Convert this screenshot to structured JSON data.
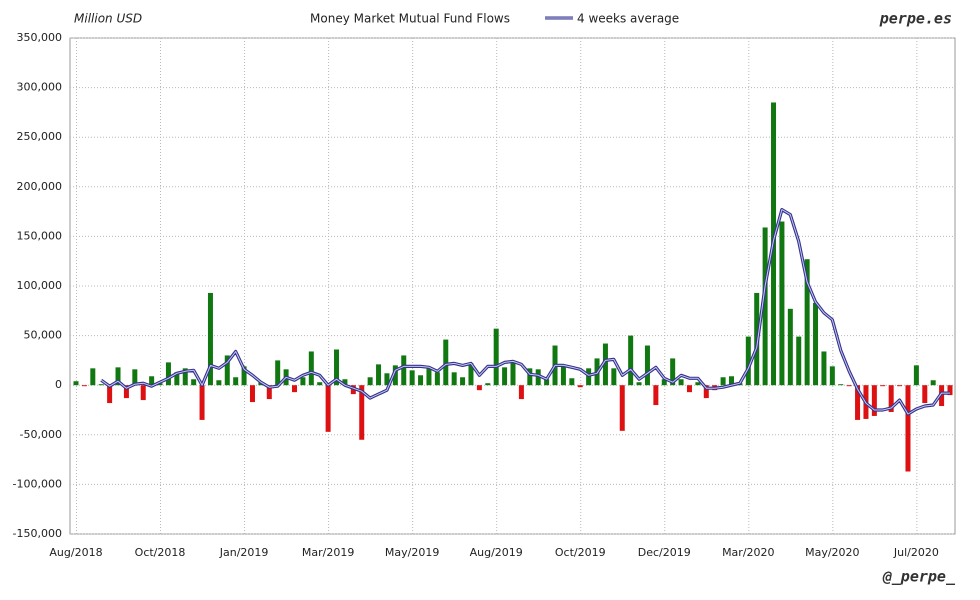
{
  "chart_data": {
    "type": "bar",
    "title": "Money Market Mutual Fund Flows",
    "y_axis_label": "Million USD",
    "site": "perpe.es",
    "handle": "@_perpe_",
    "positive_color": "#117711",
    "negative_color": "#dd1111",
    "grid": true,
    "categories": [
      "Aug/2018",
      null,
      null,
      null,
      null,
      null,
      null,
      null,
      null,
      null,
      "Oct/2018",
      null,
      null,
      null,
      null,
      null,
      null,
      null,
      null,
      null,
      "Jan/2019",
      null,
      null,
      null,
      null,
      null,
      null,
      null,
      null,
      null,
      "Mar/2019",
      null,
      null,
      null,
      null,
      null,
      null,
      null,
      null,
      null,
      "May/2019",
      null,
      null,
      null,
      null,
      null,
      null,
      null,
      null,
      null,
      "Aug/2019",
      null,
      null,
      null,
      null,
      null,
      null,
      null,
      null,
      null,
      "Oct/2019",
      null,
      null,
      null,
      null,
      null,
      null,
      null,
      null,
      null,
      "Dec/2019",
      null,
      null,
      null,
      null,
      null,
      null,
      null,
      null,
      null,
      "Mar/2020",
      null,
      null,
      null,
      null,
      null,
      null,
      null,
      null,
      null,
      "May/2020",
      null,
      null,
      null,
      null,
      null,
      null,
      null,
      null,
      null,
      "Jul/2020",
      null,
      null,
      null,
      null
    ],
    "values": [
      4000,
      -1000,
      17000,
      1000,
      -18000,
      18000,
      -13000,
      16000,
      -15000,
      9000,
      2000,
      23000,
      13000,
      17000,
      6000,
      -35000,
      93000,
      5000,
      30000,
      8000,
      19000,
      -17000,
      3000,
      -14000,
      25000,
      16000,
      -7000,
      8000,
      34000,
      3000,
      -47000,
      36000,
      6000,
      -9000,
      -55000,
      8000,
      21000,
      12000,
      20000,
      30000,
      15000,
      10000,
      17000,
      13000,
      46000,
      13000,
      8000,
      22000,
      -5000,
      2000,
      57000,
      18000,
      23000,
      -14000,
      17000,
      16000,
      6000,
      40000,
      19000,
      7000,
      -2000,
      17000,
      27000,
      42000,
      17000,
      -46000,
      50000,
      3000,
      40000,
      -20000,
      6000,
      27000,
      6000,
      -7000,
      3000,
      -13000,
      -5000,
      8000,
      9000,
      2000,
      49000,
      93000,
      159000,
      285000,
      165000,
      77000,
      49000,
      127000,
      83000,
      34000,
      19000,
      1000,
      -1000,
      -35000,
      -34000,
      -31000,
      -1000,
      -27000,
      -1000,
      -87000,
      20000,
      -18000,
      5000,
      -21000,
      -10000
    ],
    "series": [
      {
        "name": "4 weeks average",
        "color": "#33338f",
        "type": "line",
        "values": [
          null,
          null,
          null,
          5000,
          -1000,
          4000,
          -3000,
          1000,
          2000,
          -1000,
          3000,
          7000,
          12000,
          14000,
          15000,
          0,
          20000,
          17000,
          23000,
          34000,
          16000,
          10000,
          3000,
          -2000,
          -1000,
          8000,
          5000,
          10000,
          13000,
          10000,
          0,
          6000,
          0,
          -3000,
          -6000,
          -13000,
          -9000,
          -5000,
          15000,
          19000,
          19000,
          19000,
          18000,
          14000,
          21000,
          22000,
          20000,
          22000,
          10000,
          19000,
          19000,
          23000,
          24000,
          21000,
          11000,
          10000,
          6000,
          20000,
          20000,
          18000,
          16000,
          10000,
          12000,
          25000,
          26000,
          10000,
          16000,
          6000,
          12000,
          18000,
          7000,
          3000,
          10000,
          7000,
          7000,
          -3000,
          -3000,
          -2000,
          0,
          2000,
          17000,
          38000,
          100000,
          146000,
          177000,
          172000,
          145000,
          104000,
          84000,
          73000,
          66000,
          35000,
          14000,
          -4000,
          -18000,
          -25000,
          -25000,
          -23000,
          -15000,
          -29000,
          -24000,
          -21000,
          -20000,
          -8000,
          -8000
        ]
      }
    ],
    "ylim": [
      -150000,
      350000
    ],
    "yticks": [
      {
        "value": -150000,
        "label": "-150,000"
      },
      {
        "value": -100000,
        "label": "-100,000"
      },
      {
        "value": -50000,
        "label": "-50,000"
      },
      0,
      {
        "value": 50000,
        "label": "50,000"
      },
      {
        "value": 100000,
        "label": "100,000"
      },
      {
        "value": 150000,
        "label": "150,000"
      },
      {
        "value": 200000,
        "label": "200,000"
      },
      {
        "value": 250000,
        "label": "250,000"
      },
      {
        "value": 300000,
        "label": "300,000"
      },
      {
        "value": 350000,
        "label": "350,000"
      }
    ]
  }
}
